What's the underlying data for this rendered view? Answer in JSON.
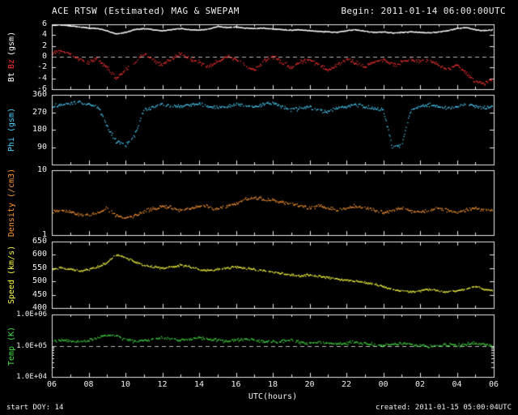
{
  "header": {
    "title": "ACE RTSW (Estimated) MAG & SWEPAM",
    "begin": "Begin: 2011-01-14 06:00:00UTC"
  },
  "footer": {
    "start_doy": "start DOY:  14",
    "created": "created: 2011-01-15 05:00:04UTC"
  },
  "x_axis": {
    "label": "UTC(hours)",
    "ticks": [
      "06",
      "08",
      "10",
      "12",
      "14",
      "16",
      "18",
      "20",
      "22",
      "00",
      "02",
      "04",
      "06"
    ],
    "start_hour": 6,
    "span_hours": 24
  },
  "colors": {
    "background": "#000000",
    "frame": "#e8e8e8",
    "dashed": "#bbbbbb",
    "text": "#f0f0f0"
  },
  "chart_data": [
    {
      "type": "scatter",
      "title": "Bt Bz (gsm)",
      "scale": "linear",
      "ylim": [
        -6,
        6
      ],
      "yticks": [
        {
          "v": 6,
          "label": "6"
        },
        {
          "v": 4,
          "label": "4"
        },
        {
          "v": 2,
          "label": "2"
        },
        {
          "v": 0,
          "label": "0"
        },
        {
          "v": -2,
          "label": "-2"
        },
        {
          "v": -4,
          "label": "-4"
        },
        {
          "v": -6,
          "label": "-6"
        }
      ],
      "ylabel_parts": [
        {
          "text": "Bt",
          "color": "#ffffff"
        },
        {
          "text": "Bz",
          "color": "#ff3333"
        },
        {
          "text": "(gsm)",
          "color": "#ffffff"
        }
      ],
      "dashed_y": 0,
      "x_start": 6,
      "x_step": 0.5,
      "series": [
        {
          "name": "Bt",
          "color": "#ffffff",
          "noise": 0.12,
          "dense": true,
          "values": [
            5.8,
            5.9,
            5.7,
            5.5,
            5.3,
            5.2,
            4.8,
            4.2,
            4.5,
            5.0,
            5.2,
            5.0,
            4.8,
            5.0,
            5.2,
            5.0,
            4.9,
            5.1,
            5.6,
            5.4,
            5.5,
            5.3,
            5.2,
            5.3,
            5.1,
            5.0,
            4.9,
            5.0,
            4.8,
            4.7,
            4.6,
            4.5,
            4.8,
            5.0,
            4.7,
            4.5,
            4.6,
            4.4,
            4.5,
            4.6,
            4.5,
            4.4,
            4.6,
            4.8,
            5.2,
            5.4,
            5.0,
            4.8,
            5.0
          ]
        },
        {
          "name": "Bz",
          "color": "#ff3333",
          "noise": 0.55,
          "dense": false,
          "values": [
            0.5,
            1.0,
            0.5,
            -0.5,
            -1.0,
            -0.5,
            -2.0,
            -4.0,
            -2.5,
            -1.0,
            0.5,
            -0.5,
            -1.5,
            -0.5,
            0.5,
            -0.5,
            -1.0,
            -2.0,
            -1.0,
            0.0,
            -0.5,
            -1.5,
            -2.5,
            -1.0,
            0.0,
            -1.0,
            -2.0,
            -1.0,
            -0.5,
            -1.5,
            -2.5,
            -1.5,
            -0.5,
            -1.0,
            -2.0,
            -1.0,
            -0.5,
            -1.5,
            -1.0,
            -0.5,
            -1.0,
            -0.5,
            -1.5,
            -2.5,
            -1.5,
            -3.0,
            -4.5,
            -5.0,
            -4.0
          ]
        }
      ]
    },
    {
      "type": "scatter",
      "title": "Phi (gsm)",
      "scale": "linear",
      "ylim": [
        0,
        360
      ],
      "yticks": [
        {
          "v": 360,
          "label": "360"
        },
        {
          "v": 270,
          "label": "270"
        },
        {
          "v": 180,
          "label": "180"
        },
        {
          "v": 90,
          "label": "90"
        }
      ],
      "ylabel_parts": [
        {
          "text": "Phi (gsm)",
          "color": "#4dd2ff"
        }
      ],
      "dashed_y": null,
      "x_start": 6,
      "x_step": 0.5,
      "series": [
        {
          "name": "Phi",
          "color": "#4dd2ff",
          "noise": 14,
          "dense": false,
          "values": [
            300,
            310,
            315,
            320,
            310,
            300,
            200,
            120,
            100,
            150,
            280,
            300,
            310,
            305,
            300,
            310,
            315,
            300,
            295,
            300,
            310,
            305,
            295,
            310,
            320,
            300,
            280,
            290,
            300,
            280,
            270,
            290,
            300,
            310,
            300,
            290,
            280,
            90,
            100,
            280,
            300,
            310,
            300,
            290,
            300,
            310,
            300,
            290,
            300
          ]
        }
      ]
    },
    {
      "type": "scatter",
      "title": "Density (/cm3)",
      "scale": "log",
      "ylim": [
        1,
        10
      ],
      "yticks": [
        {
          "v": 10,
          "label": "10"
        },
        {
          "v": 1,
          "label": "1"
        }
      ],
      "ylabel_parts": [
        {
          "text": "Density (/cm3)",
          "color": "#ff9933"
        }
      ],
      "dashed_y": null,
      "x_start": 6,
      "x_step": 0.5,
      "series": [
        {
          "name": "Density",
          "color": "#ff9933",
          "noise": 0.04,
          "dense": false,
          "values": [
            2.2,
            2.4,
            2.3,
            2.1,
            2.0,
            2.2,
            2.5,
            2.0,
            1.8,
            2.0,
            2.3,
            2.5,
            2.8,
            2.6,
            2.4,
            2.6,
            2.8,
            2.7,
            2.5,
            2.8,
            3.0,
            3.5,
            3.8,
            3.6,
            3.4,
            3.2,
            3.0,
            2.8,
            2.6,
            2.8,
            2.6,
            2.4,
            2.6,
            2.8,
            2.6,
            2.4,
            2.2,
            2.4,
            2.6,
            2.4,
            2.2,
            2.4,
            2.6,
            2.4,
            2.2,
            2.4,
            2.6,
            2.4,
            2.5
          ]
        }
      ]
    },
    {
      "type": "scatter",
      "title": "Speed (km/s)",
      "scale": "linear",
      "ylim": [
        400,
        650
      ],
      "yticks": [
        {
          "v": 650,
          "label": "650"
        },
        {
          "v": 600,
          "label": "600"
        },
        {
          "v": 550,
          "label": "550"
        },
        {
          "v": 500,
          "label": "500"
        },
        {
          "v": 450,
          "label": "450"
        },
        {
          "v": 400,
          "label": "400"
        }
      ],
      "ylabel_parts": [
        {
          "text": "Speed (km/s)",
          "color": "#ffff44"
        }
      ],
      "dashed_y": null,
      "x_start": 6,
      "x_step": 0.5,
      "series": [
        {
          "name": "Speed",
          "color": "#ffff44",
          "noise": 6,
          "dense": false,
          "values": [
            545,
            550,
            545,
            540,
            545,
            555,
            570,
            600,
            590,
            575,
            560,
            555,
            550,
            555,
            560,
            555,
            545,
            540,
            545,
            550,
            555,
            550,
            545,
            540,
            535,
            530,
            525,
            520,
            525,
            520,
            515,
            510,
            505,
            500,
            495,
            490,
            480,
            470,
            465,
            460,
            465,
            470,
            465,
            460,
            465,
            470,
            480,
            470,
            465
          ]
        }
      ]
    },
    {
      "type": "scatter",
      "title": "Temp (K)",
      "scale": "log",
      "ylim": [
        10000,
        1000000
      ],
      "yticks": [
        {
          "v": 1000000,
          "label": "1.0E+06"
        },
        {
          "v": 100000,
          "label": "1.0E+05"
        },
        {
          "v": 10000,
          "label": "1.0E+04"
        }
      ],
      "ylabel_parts": [
        {
          "text": "Temp (K)",
          "color": "#44dd44"
        }
      ],
      "dashed_y": 100000,
      "x_start": 6,
      "x_step": 0.5,
      "series": [
        {
          "name": "Temp",
          "color": "#44dd44",
          "noise": 0.07,
          "dense": false,
          "values": [
            130000,
            150000,
            140000,
            130000,
            150000,
            180000,
            220000,
            200000,
            160000,
            140000,
            150000,
            160000,
            180000,
            170000,
            150000,
            160000,
            180000,
            160000,
            150000,
            140000,
            150000,
            160000,
            150000,
            140000,
            130000,
            140000,
            150000,
            130000,
            120000,
            130000,
            120000,
            110000,
            120000,
            130000,
            120000,
            110000,
            100000,
            110000,
            120000,
            110000,
            100000,
            90000,
            100000,
            110000,
            100000,
            110000,
            120000,
            110000,
            100000
          ]
        }
      ]
    }
  ]
}
